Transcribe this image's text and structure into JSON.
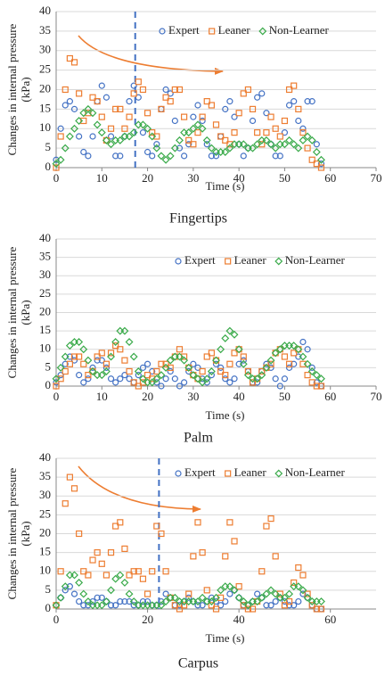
{
  "chart_data": [
    {
      "type": "scatter",
      "caption": "Fingertips",
      "xlabel": "Time (s)",
      "ylabel": [
        "Changes in internal pressure",
        "(kPa)"
      ],
      "xlim": [
        0,
        70
      ],
      "xticks": [
        0,
        10,
        20,
        30,
        40,
        50,
        60,
        70
      ],
      "ylim": [
        0,
        40
      ],
      "yticks": [
        0,
        5,
        10,
        15,
        20,
        25,
        30,
        35,
        40
      ],
      "grid": true,
      "vline": 17.3,
      "x": [
        0,
        1,
        2,
        3,
        4,
        5,
        6,
        7,
        8,
        9,
        10,
        11,
        12,
        13,
        14,
        15,
        16,
        17,
        18,
        19,
        20,
        21,
        22,
        23,
        24,
        25,
        26,
        27,
        28,
        29,
        30,
        31,
        32,
        33,
        34,
        35,
        36,
        37,
        38,
        39,
        40,
        41,
        42,
        43,
        44,
        45,
        46,
        47,
        48,
        49,
        50,
        51,
        52,
        53,
        54,
        55,
        56,
        57,
        58
      ],
      "series": [
        {
          "name": "Expert",
          "color": "#4472c4",
          "marker": "circle",
          "values": [
            2,
            10,
            16,
            17,
            15,
            8,
            4,
            3,
            8,
            17,
            21,
            18,
            8,
            3,
            3,
            8,
            17,
            21,
            18,
            9,
            4,
            3,
            6,
            15,
            20,
            19,
            12,
            5,
            3,
            6,
            13,
            16,
            12,
            6,
            3,
            3,
            8,
            15,
            17,
            13,
            6,
            3,
            5,
            12,
            18,
            19,
            14,
            6,
            3,
            3,
            9,
            16,
            17,
            12,
            10,
            17,
            17,
            6,
            1
          ]
        },
        {
          "name": "Leaner",
          "color": "#ed7d31",
          "marker": "square",
          "values": [
            0,
            8,
            20,
            28,
            27,
            19,
            12,
            14,
            18,
            17,
            13,
            7,
            10,
            15,
            15,
            10,
            13,
            19,
            22,
            20,
            14,
            9,
            8,
            15,
            18,
            17,
            20,
            20,
            13,
            7,
            6,
            9,
            13,
            17,
            16,
            11,
            8,
            7,
            6,
            9,
            14,
            19,
            20,
            15,
            9,
            6,
            9,
            13,
            10,
            8,
            12,
            20,
            21,
            15,
            9,
            5,
            2,
            1,
            0
          ]
        },
        {
          "name": "Non-Learner",
          "color": "#3aaa4a",
          "marker": "diamond",
          "values": [
            1,
            2,
            5,
            8,
            10,
            12,
            14,
            15,
            14,
            11,
            9,
            7,
            6,
            7,
            7,
            8,
            8,
            9,
            11,
            11,
            10,
            8,
            5,
            3,
            2,
            3,
            5,
            7,
            9,
            9,
            10,
            11,
            10,
            7,
            5,
            4,
            4,
            4,
            5,
            6,
            6,
            6,
            5,
            5,
            6,
            7,
            7,
            6,
            5,
            6,
            6,
            7,
            6,
            5,
            7,
            8,
            7,
            4,
            2
          ]
        }
      ]
    },
    {
      "type": "scatter",
      "caption": "Palm",
      "xlabel": "Time (s)",
      "ylabel": [
        "Changes in internal pressure",
        "(kPa)"
      ],
      "xlim": [
        0,
        70
      ],
      "xticks": [
        0,
        10,
        20,
        30,
        40,
        50,
        60,
        70
      ],
      "ylim": [
        0,
        40
      ],
      "yticks": [
        0,
        5,
        10,
        15,
        20,
        25,
        30,
        35,
        40
      ],
      "grid": true,
      "x": [
        0,
        1,
        2,
        3,
        4,
        5,
        6,
        7,
        8,
        9,
        10,
        11,
        12,
        13,
        14,
        15,
        16,
        17,
        18,
        19,
        20,
        21,
        22,
        23,
        24,
        25,
        26,
        27,
        28,
        29,
        30,
        31,
        32,
        33,
        34,
        35,
        36,
        37,
        38,
        39,
        40,
        41,
        42,
        43,
        44,
        45,
        46,
        47,
        48,
        49,
        50,
        51,
        52,
        53,
        54,
        55,
        56,
        57,
        58
      ],
      "series": [
        {
          "name": "Expert",
          "color": "#4472c4",
          "marker": "circle",
          "values": [
            1,
            3,
            6,
            8,
            7,
            3,
            1,
            2,
            5,
            7,
            7,
            5,
            2,
            1,
            2,
            3,
            2,
            1,
            3,
            5,
            6,
            4,
            1,
            0,
            2,
            4,
            2,
            0,
            1,
            4,
            6,
            5,
            2,
            1,
            3,
            6,
            5,
            2,
            1,
            2,
            6,
            7,
            4,
            1,
            1,
            4,
            6,
            5,
            2,
            0,
            2,
            5,
            6,
            8,
            12,
            10,
            5,
            1,
            0
          ]
        },
        {
          "name": "Leaner",
          "color": "#ed7d31",
          "marker": "square",
          "values": [
            0,
            2,
            4,
            6,
            8,
            8,
            6,
            3,
            4,
            8,
            9,
            6,
            9,
            11,
            10,
            7,
            4,
            1,
            0,
            1,
            3,
            2,
            4,
            6,
            6,
            5,
            8,
            10,
            8,
            5,
            3,
            2,
            4,
            8,
            9,
            7,
            4,
            3,
            6,
            9,
            10,
            8,
            4,
            1,
            2,
            4,
            5,
            6,
            9,
            10,
            8,
            6,
            9,
            10,
            6,
            3,
            1,
            0,
            0
          ]
        },
        {
          "name": "Non-Learner",
          "color": "#3aaa4a",
          "marker": "diamond",
          "values": [
            2,
            5,
            8,
            11,
            12,
            12,
            10,
            7,
            4,
            3,
            3,
            4,
            8,
            12,
            15,
            15,
            12,
            8,
            4,
            2,
            1,
            1,
            2,
            3,
            5,
            7,
            8,
            8,
            7,
            5,
            3,
            2,
            1,
            2,
            4,
            7,
            10,
            13,
            15,
            14,
            10,
            6,
            3,
            2,
            2,
            3,
            5,
            7,
            9,
            10,
            11,
            11,
            11,
            10,
            8,
            6,
            4,
            3,
            2
          ]
        }
      ]
    },
    {
      "type": "scatter",
      "caption": "Carpus",
      "xlabel": "Time (s)",
      "ylabel": [
        "Changes in internal pressure",
        "(kPa)"
      ],
      "xlim": [
        0,
        70
      ],
      "xticks": [
        0,
        20,
        40,
        60
      ],
      "ylim": [
        0,
        40
      ],
      "yticks": [
        0,
        5,
        10,
        15,
        20,
        25,
        30,
        35,
        40
      ],
      "grid": true,
      "vline": 22.5,
      "x": [
        0,
        1,
        2,
        3,
        4,
        5,
        6,
        7,
        8,
        9,
        10,
        11,
        12,
        13,
        14,
        15,
        16,
        17,
        18,
        19,
        20,
        21,
        22,
        23,
        24,
        25,
        26,
        27,
        28,
        29,
        30,
        31,
        32,
        33,
        34,
        35,
        36,
        37,
        38,
        39,
        40,
        41,
        42,
        43,
        44,
        45,
        46,
        47,
        48,
        49,
        50,
        51,
        52,
        53,
        54,
        55,
        56,
        57,
        58
      ],
      "series": [
        {
          "name": "Expert",
          "color": "#4472c4",
          "marker": "circle",
          "values": [
            1,
            3,
            5,
            6,
            4,
            2,
            1,
            1,
            2,
            3,
            3,
            2,
            1,
            1,
            2,
            2,
            2,
            1,
            1,
            2,
            2,
            1,
            1,
            2,
            4,
            3,
            1,
            1,
            2,
            3,
            2,
            1,
            1,
            2,
            3,
            2,
            1,
            2,
            4,
            5,
            3,
            1,
            1,
            2,
            4,
            3,
            1,
            1,
            2,
            3,
            2,
            1,
            1,
            2,
            4,
            3,
            1,
            0,
            0
          ]
        },
        {
          "name": "Leaner",
          "color": "#ed7d31",
          "marker": "square",
          "values": [
            1,
            10,
            28,
            35,
            32,
            20,
            10,
            9,
            13,
            15,
            12,
            9,
            15,
            22,
            23,
            16,
            9,
            10,
            10,
            8,
            4,
            10,
            22,
            20,
            10,
            3,
            1,
            0,
            1,
            4,
            14,
            23,
            15,
            5,
            1,
            0,
            3,
            14,
            23,
            18,
            6,
            1,
            0,
            0,
            2,
            10,
            22,
            24,
            14,
            4,
            1,
            2,
            7,
            11,
            9,
            4,
            1,
            0,
            0
          ]
        },
        {
          "name": "Non-Learner",
          "color": "#3aaa4a",
          "marker": "diamond",
          "values": [
            1,
            3,
            6,
            9,
            9,
            7,
            4,
            2,
            1,
            1,
            1,
            2,
            5,
            8,
            9,
            7,
            4,
            2,
            1,
            1,
            1,
            1,
            1,
            1,
            2,
            3,
            3,
            2,
            2,
            2,
            2,
            2,
            3,
            2,
            2,
            3,
            5,
            6,
            6,
            5,
            3,
            2,
            1,
            2,
            2,
            3,
            4,
            5,
            4,
            3,
            3,
            4,
            6,
            6,
            5,
            3,
            2,
            2,
            2
          ]
        }
      ]
    }
  ]
}
